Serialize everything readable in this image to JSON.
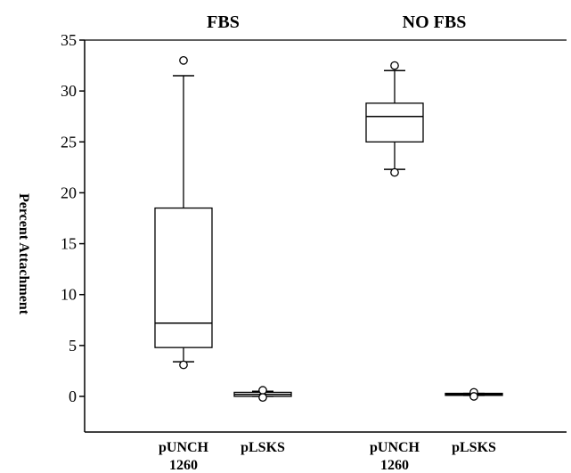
{
  "chart_data": {
    "type": "box",
    "ylabel": "Percent Attachment",
    "ylim": [
      -3.5,
      35
    ],
    "yticks": [
      0,
      5,
      10,
      15,
      20,
      25,
      30,
      35
    ],
    "groups": [
      {
        "name": "FBS",
        "categories": [
          0,
          1
        ]
      },
      {
        "name": "NO FBS",
        "categories": [
          2,
          3
        ]
      }
    ],
    "categories": [
      {
        "label_lines": [
          "pUNCH",
          "1260"
        ]
      },
      {
        "label_lines": [
          "pLSKS"
        ]
      },
      {
        "label_lines": [
          "pUNCH",
          "1260"
        ]
      },
      {
        "label_lines": [
          "pLSKS"
        ]
      }
    ],
    "boxes": [
      {
        "min": 3.4,
        "q1": 4.8,
        "median": 7.2,
        "q3": 18.5,
        "max": 31.5,
        "outliers": [
          3.1,
          33.0
        ]
      },
      {
        "min": 0.0,
        "q1": 0.0,
        "median": 0.2,
        "q3": 0.4,
        "max": 0.5,
        "outliers": [
          0.6,
          -0.1
        ]
      },
      {
        "min": 22.3,
        "q1": 25.0,
        "median": 27.5,
        "q3": 28.8,
        "max": 32.0,
        "outliers": [
          22.0,
          32.5
        ]
      },
      {
        "min": 0.1,
        "q1": 0.1,
        "median": 0.2,
        "q3": 0.3,
        "max": 0.3,
        "outliers": [
          0.4,
          0.0
        ]
      }
    ],
    "grid": false,
    "legend": "none"
  }
}
